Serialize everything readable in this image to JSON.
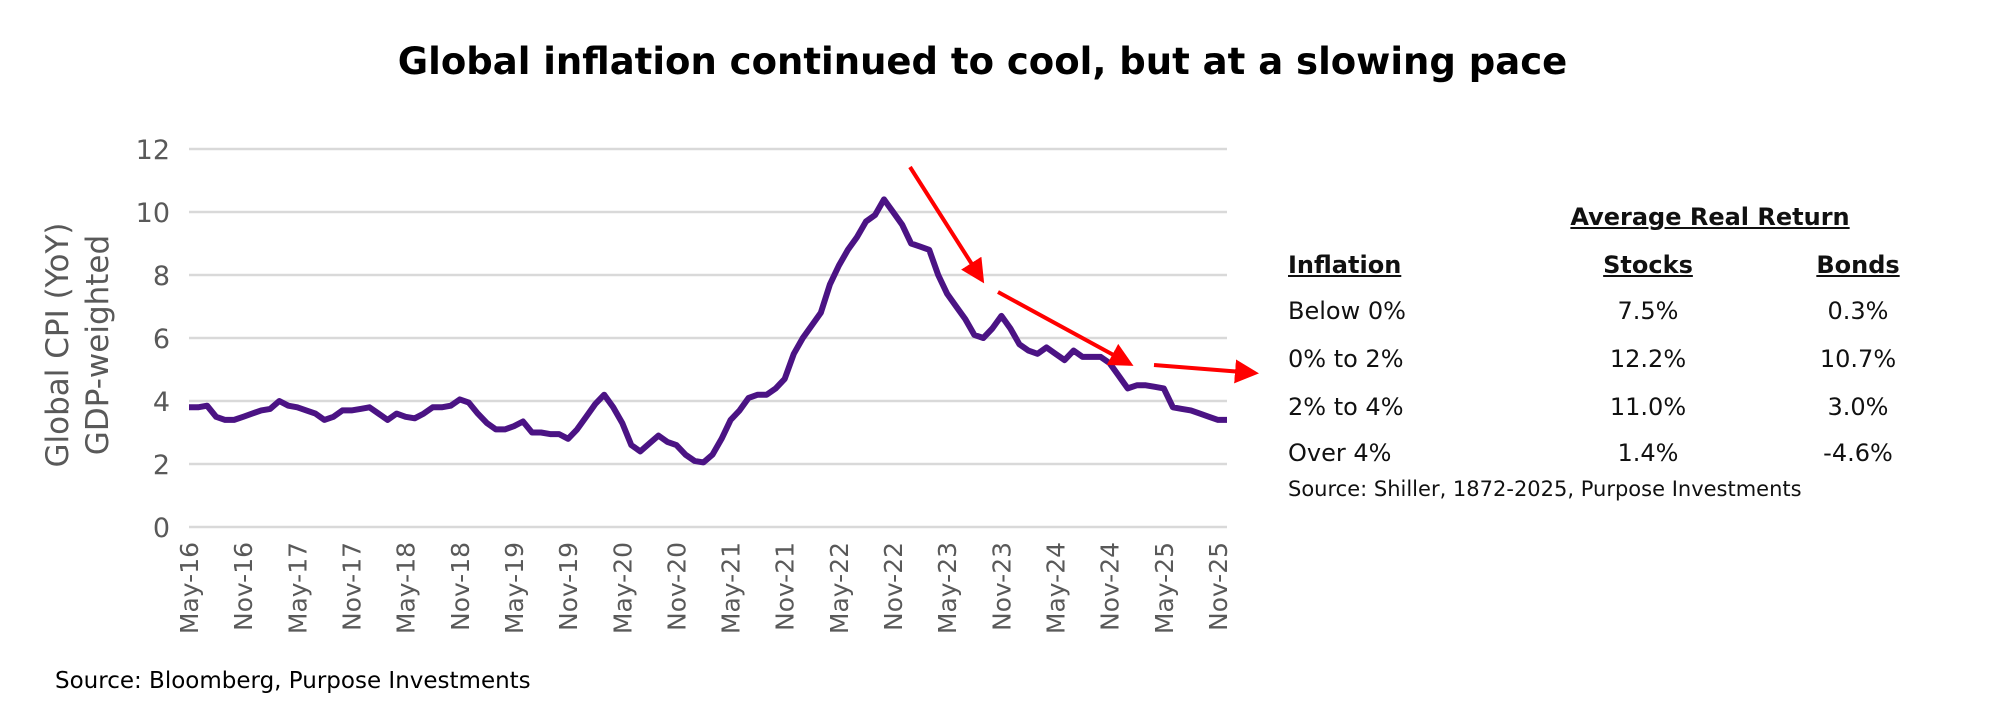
{
  "chart_data": {
    "type": "line",
    "title": "Global inflation continued to cool, but at a slowing pace",
    "ylabel_lines": [
      "Global CPI (YoY)",
      "GDP-weighted"
    ],
    "xlabel": "",
    "ylim": [
      0,
      12
    ],
    "yticks": [
      0,
      2,
      4,
      6,
      8,
      10,
      12
    ],
    "grid": true,
    "line_color": "#4b1384",
    "arrow_color": "#ff0000",
    "xtick_labels": [
      "May-16",
      "Nov-16",
      "May-17",
      "Nov-17",
      "May-18",
      "Nov-18",
      "May-19",
      "Nov-19",
      "May-20",
      "Nov-20",
      "May-21",
      "Nov-21",
      "May-22",
      "Nov-22",
      "May-23",
      "Nov-23",
      "May-24",
      "Nov-24",
      "May-25",
      "Nov-25"
    ],
    "x": [
      "2016-05",
      "2016-06",
      "2016-07",
      "2016-08",
      "2016-09",
      "2016-10",
      "2016-11",
      "2016-12",
      "2017-01",
      "2017-02",
      "2017-03",
      "2017-04",
      "2017-05",
      "2017-06",
      "2017-07",
      "2017-08",
      "2017-09",
      "2017-10",
      "2017-11",
      "2017-12",
      "2018-01",
      "2018-02",
      "2018-03",
      "2018-04",
      "2018-05",
      "2018-06",
      "2018-07",
      "2018-08",
      "2018-09",
      "2018-10",
      "2018-11",
      "2018-12",
      "2019-01",
      "2019-02",
      "2019-03",
      "2019-04",
      "2019-05",
      "2019-06",
      "2019-07",
      "2019-08",
      "2019-09",
      "2019-10",
      "2019-11",
      "2019-12",
      "2020-01",
      "2020-02",
      "2020-03",
      "2020-04",
      "2020-05",
      "2020-06",
      "2020-07",
      "2020-08",
      "2020-09",
      "2020-10",
      "2020-11",
      "2020-12",
      "2021-01",
      "2021-02",
      "2021-03",
      "2021-04",
      "2021-05",
      "2021-06",
      "2021-07",
      "2021-08",
      "2021-09",
      "2021-10",
      "2021-11",
      "2021-12",
      "2022-01",
      "2022-02",
      "2022-03",
      "2022-04",
      "2022-05",
      "2022-06",
      "2022-07",
      "2022-08",
      "2022-09",
      "2022-10",
      "2022-11",
      "2022-12",
      "2023-01",
      "2023-02",
      "2023-03",
      "2023-04",
      "2023-05",
      "2023-06",
      "2023-07",
      "2023-08",
      "2023-09",
      "2023-10",
      "2023-11",
      "2023-12",
      "2024-01",
      "2024-02",
      "2024-03",
      "2024-04",
      "2024-05",
      "2024-06",
      "2024-07",
      "2024-08",
      "2024-09",
      "2024-10",
      "2024-11",
      "2024-12",
      "2025-01",
      "2025-02",
      "2025-03",
      "2025-04",
      "2025-05",
      "2025-06",
      "2025-07",
      "2025-08",
      "2025-09",
      "2025-10",
      "2025-11",
      "2025-12"
    ],
    "y": [
      3.8,
      3.8,
      3.85,
      3.5,
      3.4,
      3.4,
      3.5,
      3.6,
      3.7,
      3.75,
      4.0,
      3.85,
      3.8,
      3.7,
      3.6,
      3.4,
      3.5,
      3.7,
      3.7,
      3.75,
      3.8,
      3.6,
      3.4,
      3.6,
      3.5,
      3.45,
      3.6,
      3.8,
      3.8,
      3.85,
      4.05,
      3.95,
      3.6,
      3.3,
      3.1,
      3.1,
      3.2,
      3.35,
      3.0,
      3.0,
      2.95,
      2.95,
      2.8,
      3.1,
      3.5,
      3.9,
      4.2,
      3.8,
      3.3,
      2.6,
      2.4,
      2.65,
      2.9,
      2.7,
      2.6,
      2.3,
      2.1,
      2.05,
      2.3,
      2.8,
      3.4,
      3.7,
      4.1,
      4.2,
      4.2,
      4.4,
      4.7,
      5.5,
      6.0,
      6.4,
      6.8,
      7.7,
      8.3,
      8.8,
      9.2,
      9.7,
      9.9,
      10.4,
      10.0,
      9.6,
      9.0,
      8.9,
      8.8,
      8.0,
      7.4,
      7.0,
      6.6,
      6.1,
      6.0,
      6.3,
      6.7,
      6.3,
      5.8,
      5.6,
      5.5,
      5.7,
      5.5,
      5.3,
      5.6,
      5.4,
      5.4,
      5.4,
      5.2,
      4.8,
      4.4,
      4.5,
      4.5,
      4.45,
      4.4,
      3.8,
      3.75,
      3.7,
      3.6,
      3.5,
      3.4,
      3.4
    ],
    "source": "Source: Bloomberg, Purpose Investments"
  },
  "table": {
    "title": "Average Real Return",
    "headers": [
      "Inflation",
      "Stocks",
      "Bonds"
    ],
    "rows": [
      [
        "Below 0%",
        "7.5%",
        "0.3%"
      ],
      [
        "0% to 2%",
        "12.2%",
        "10.7%"
      ],
      [
        "2% to 4%",
        "11.0%",
        "3.0%"
      ],
      [
        "Over 4%",
        "1.4%",
        "-4.6%"
      ]
    ],
    "source": "Source: Shiller, 1872-2025, Purpose Investments"
  }
}
